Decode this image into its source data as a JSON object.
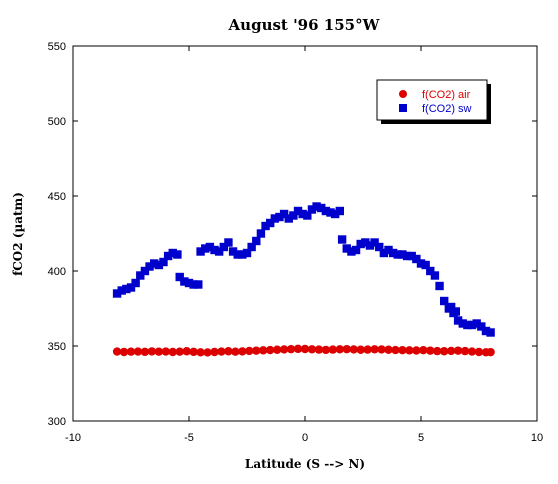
{
  "chart_data": {
    "type": "scatter",
    "title": "August '96 155°W",
    "xlabel": "Latitude (S --> N)",
    "ylabel": "fCO2 (µatm)",
    "xlim": [
      -10,
      10
    ],
    "ylim": [
      300,
      550
    ],
    "xticks": [
      -10,
      -5,
      0,
      5,
      10
    ],
    "yticks": [
      300,
      350,
      400,
      450,
      500,
      550
    ],
    "grid": false,
    "legend_position": "top-right",
    "series": [
      {
        "name": "f(CO2) air",
        "marker": "circle",
        "color": "#dd0000",
        "points": [
          [
            -8.1,
            346.3
          ],
          [
            -7.8,
            346.0
          ],
          [
            -7.5,
            346.2
          ],
          [
            -7.2,
            346.3
          ],
          [
            -6.9,
            346.1
          ],
          [
            -6.6,
            346.4
          ],
          [
            -6.3,
            346.2
          ],
          [
            -6.0,
            346.3
          ],
          [
            -5.7,
            346.0
          ],
          [
            -5.4,
            346.2
          ],
          [
            -5.1,
            346.5
          ],
          [
            -4.8,
            346.1
          ],
          [
            -4.5,
            345.8
          ],
          [
            -4.2,
            345.7
          ],
          [
            -3.9,
            346.0
          ],
          [
            -3.6,
            346.3
          ],
          [
            -3.3,
            346.5
          ],
          [
            -3.0,
            346.2
          ],
          [
            -2.7,
            346.4
          ],
          [
            -2.4,
            346.7
          ],
          [
            -2.1,
            346.9
          ],
          [
            -1.8,
            347.1
          ],
          [
            -1.5,
            347.3
          ],
          [
            -1.2,
            347.5
          ],
          [
            -0.9,
            347.7
          ],
          [
            -0.6,
            347.9
          ],
          [
            -0.3,
            348.1
          ],
          [
            0.0,
            348.0
          ],
          [
            0.3,
            347.8
          ],
          [
            0.6,
            347.6
          ],
          [
            0.9,
            347.4
          ],
          [
            1.2,
            347.6
          ],
          [
            1.5,
            347.8
          ],
          [
            1.8,
            347.9
          ],
          [
            2.1,
            347.7
          ],
          [
            2.4,
            347.5
          ],
          [
            2.7,
            347.6
          ],
          [
            3.0,
            347.8
          ],
          [
            3.3,
            347.7
          ],
          [
            3.6,
            347.5
          ],
          [
            3.9,
            347.3
          ],
          [
            4.2,
            347.2
          ],
          [
            4.5,
            347.1
          ],
          [
            4.8,
            347.0
          ],
          [
            5.1,
            347.2
          ],
          [
            5.4,
            346.9
          ],
          [
            5.7,
            346.6
          ],
          [
            6.0,
            346.5
          ],
          [
            6.3,
            346.7
          ],
          [
            6.6,
            346.9
          ],
          [
            6.9,
            346.6
          ],
          [
            7.2,
            346.3
          ],
          [
            7.5,
            346.0
          ],
          [
            7.8,
            345.8
          ],
          [
            8.0,
            345.9
          ]
        ]
      },
      {
        "name": "f(CO2) sw",
        "marker": "square",
        "color": "#0000cc",
        "points": [
          [
            -8.1,
            385
          ],
          [
            -7.9,
            387
          ],
          [
            -7.7,
            388
          ],
          [
            -7.5,
            389
          ],
          [
            -7.3,
            392
          ],
          [
            -7.1,
            397
          ],
          [
            -6.9,
            400
          ],
          [
            -6.7,
            403
          ],
          [
            -6.5,
            405
          ],
          [
            -6.3,
            404
          ],
          [
            -6.1,
            406
          ],
          [
            -5.9,
            410
          ],
          [
            -5.7,
            412
          ],
          [
            -5.5,
            411
          ],
          [
            -5.4,
            396
          ],
          [
            -5.2,
            393
          ],
          [
            -5.0,
            392
          ],
          [
            -4.8,
            391
          ],
          [
            -4.6,
            391
          ],
          [
            -4.5,
            413
          ],
          [
            -4.3,
            415
          ],
          [
            -4.1,
            416
          ],
          [
            -3.9,
            414
          ],
          [
            -3.7,
            413
          ],
          [
            -3.5,
            416
          ],
          [
            -3.3,
            419
          ],
          [
            -3.1,
            413
          ],
          [
            -2.9,
            411
          ],
          [
            -2.7,
            411
          ],
          [
            -2.5,
            412
          ],
          [
            -2.3,
            416
          ],
          [
            -2.1,
            420
          ],
          [
            -1.9,
            425
          ],
          [
            -1.7,
            430
          ],
          [
            -1.5,
            432
          ],
          [
            -1.3,
            435
          ],
          [
            -1.1,
            436
          ],
          [
            -0.9,
            438
          ],
          [
            -0.7,
            435
          ],
          [
            -0.5,
            437
          ],
          [
            -0.3,
            440
          ],
          [
            -0.1,
            438
          ],
          [
            0.1,
            437
          ],
          [
            0.3,
            441
          ],
          [
            0.5,
            443
          ],
          [
            0.7,
            442
          ],
          [
            0.9,
            440
          ],
          [
            1.1,
            439
          ],
          [
            1.3,
            438
          ],
          [
            1.5,
            440
          ],
          [
            1.6,
            421
          ],
          [
            1.8,
            415
          ],
          [
            2.0,
            413
          ],
          [
            2.2,
            414
          ],
          [
            2.4,
            418
          ],
          [
            2.6,
            419
          ],
          [
            2.8,
            417
          ],
          [
            3.0,
            419
          ],
          [
            3.2,
            416
          ],
          [
            3.4,
            412
          ],
          [
            3.6,
            414
          ],
          [
            3.8,
            412
          ],
          [
            4.0,
            411
          ],
          [
            4.2,
            411
          ],
          [
            4.4,
            410
          ],
          [
            4.6,
            410
          ],
          [
            4.8,
            408
          ],
          [
            5.0,
            405
          ],
          [
            5.2,
            404
          ],
          [
            5.4,
            400
          ],
          [
            5.6,
            397
          ],
          [
            5.8,
            390
          ],
          [
            6.0,
            380
          ],
          [
            6.2,
            375
          ],
          [
            6.3,
            376
          ],
          [
            6.4,
            372
          ],
          [
            6.5,
            373
          ],
          [
            6.6,
            367
          ],
          [
            6.8,
            365
          ],
          [
            7.0,
            364
          ],
          [
            7.2,
            364
          ],
          [
            7.4,
            365
          ],
          [
            7.6,
            363
          ],
          [
            7.8,
            360
          ],
          [
            8.0,
            359
          ]
        ]
      }
    ]
  }
}
